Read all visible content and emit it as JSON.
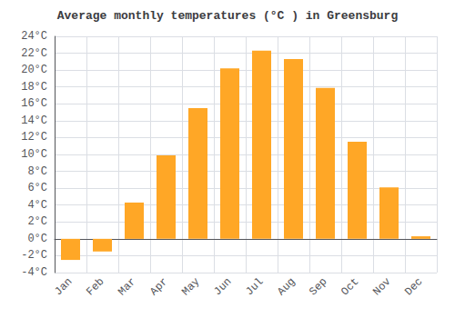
{
  "chart_data": {
    "type": "bar",
    "title": "Average monthly temperatures (°C ) in Greensburg",
    "categories": [
      "Jan",
      "Feb",
      "Mar",
      "Apr",
      "May",
      "Jun",
      "Jul",
      "Aug",
      "Sep",
      "Oct",
      "Nov",
      "Dec"
    ],
    "values": [
      -2.5,
      -1.5,
      4.3,
      9.9,
      15.5,
      20.2,
      22.3,
      21.3,
      17.9,
      11.5,
      6.1,
      0.3
    ],
    "color": "#FFA726",
    "ylim": [
      -4,
      24
    ],
    "yticks": [
      {
        "value": -4,
        "label": "-4°C"
      },
      {
        "value": -2,
        "label": "-2°C"
      },
      {
        "value": 0,
        "label": "0°C"
      },
      {
        "value": 2,
        "label": "2°C"
      },
      {
        "value": 4,
        "label": "4°C"
      },
      {
        "value": 6,
        "label": "6°C"
      },
      {
        "value": 8,
        "label": "8°C"
      },
      {
        "value": 10,
        "label": "10°C"
      },
      {
        "value": 12,
        "label": "12°C"
      },
      {
        "value": 14,
        "label": "14°C"
      },
      {
        "value": 16,
        "label": "16°C"
      },
      {
        "value": 18,
        "label": "18°C"
      },
      {
        "value": 20,
        "label": "20°C"
      },
      {
        "value": 22,
        "label": "22°C"
      },
      {
        "value": 24,
        "label": "24°C"
      }
    ],
    "grid": true
  }
}
